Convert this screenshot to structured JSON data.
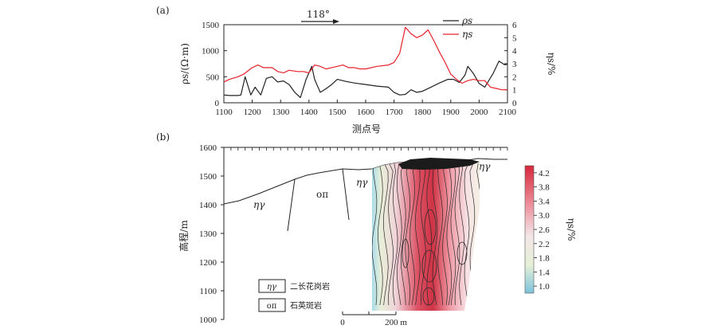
{
  "chart_data": [
    {
      "panel": "(a)",
      "type": "line",
      "annotation": "118°",
      "xlabel": "测点号",
      "ylabel_left": "ρs/(Ω·m)",
      "ylabel_right": "ηs/%",
      "xlim": [
        1100,
        2100
      ],
      "ylim_left": [
        0,
        1500
      ],
      "ylim_right": [
        0,
        6
      ],
      "xticks": [
        1100,
        1200,
        1300,
        1400,
        1500,
        1600,
        1700,
        1800,
        1900,
        2000,
        2100
      ],
      "yticks_left": [
        0,
        500,
        1000,
        1500
      ],
      "yticks_right": [
        0,
        1,
        2,
        3,
        4,
        5,
        6
      ],
      "legend": [
        {
          "name": "ρs",
          "color": "#222222"
        },
        {
          "name": "ηs",
          "color": "#e8212b"
        }
      ],
      "series": [
        {
          "name": "ρs",
          "axis": "left",
          "color": "#222222",
          "x": [
            1100,
            1120,
            1150,
            1160,
            1175,
            1195,
            1210,
            1230,
            1250,
            1270,
            1290,
            1310,
            1330,
            1350,
            1370,
            1390,
            1410,
            1420,
            1440,
            1460,
            1480,
            1500,
            1530,
            1560,
            1600,
            1640,
            1680,
            1700,
            1720,
            1740,
            1760,
            1780,
            1800,
            1830,
            1860,
            1890,
            1910,
            1930,
            1950,
            1960,
            1980,
            2000,
            2020,
            2050,
            2070,
            2090,
            2100
          ],
          "values": [
            150,
            140,
            140,
            150,
            500,
            150,
            300,
            150,
            470,
            500,
            400,
            420,
            350,
            200,
            100,
            450,
            700,
            450,
            200,
            270,
            350,
            450,
            410,
            380,
            350,
            320,
            300,
            200,
            150,
            160,
            250,
            200,
            220,
            300,
            380,
            450,
            450,
            390,
            530,
            700,
            560,
            370,
            300,
            570,
            800,
            730,
            740
          ]
        },
        {
          "name": "ηs",
          "axis": "right",
          "color": "#e8212b",
          "x": [
            1100,
            1120,
            1150,
            1170,
            1200,
            1220,
            1240,
            1270,
            1290,
            1310,
            1330,
            1360,
            1380,
            1400,
            1420,
            1440,
            1460,
            1480,
            1500,
            1520,
            1540,
            1560,
            1580,
            1600,
            1640,
            1680,
            1700,
            1720,
            1740,
            1760,
            1780,
            1800,
            1820,
            1840,
            1860,
            1880,
            1900,
            1920,
            1940,
            1960,
            1980,
            2000,
            2020,
            2040,
            2060,
            2080,
            2100
          ],
          "values": [
            1.6,
            1.8,
            2.0,
            2.2,
            2.7,
            2.9,
            2.7,
            2.7,
            2.4,
            2.3,
            2.5,
            2.4,
            2.4,
            2.3,
            2.9,
            2.8,
            2.6,
            2.7,
            2.8,
            2.9,
            2.7,
            2.7,
            2.6,
            2.6,
            2.8,
            2.9,
            3.1,
            3.8,
            5.8,
            5.3,
            5.0,
            5.2,
            5.6,
            4.8,
            3.9,
            3.1,
            2.2,
            1.8,
            1.5,
            1.7,
            1.8,
            1.7,
            1.7,
            1.2,
            1.1,
            1.0,
            1.0
          ]
        }
      ]
    },
    {
      "panel": "(b)",
      "type": "heatmap",
      "ylabel": "高程/m",
      "ylim": [
        1000,
        1600
      ],
      "yticks": [
        1000,
        1100,
        1200,
        1300,
        1400,
        1500,
        1600
      ],
      "colorbar_label": "ηs/%",
      "colorbar_ticks": [
        1.0,
        1.4,
        1.8,
        2.2,
        2.6,
        3.0,
        3.4,
        3.8,
        4.2
      ],
      "colorbar_range": [
        0.8,
        4.4
      ],
      "rock_labels": [
        "ηγ",
        "oπ",
        "ηγ",
        "ηγ"
      ],
      "legend": [
        {
          "symbol": "ηγ",
          "label": "二长花岗岩"
        },
        {
          "symbol": "oπ",
          "label": "石英斑岩"
        }
      ],
      "scale_bar": {
        "start_label": "0",
        "end_label": "200 m"
      }
    }
  ]
}
